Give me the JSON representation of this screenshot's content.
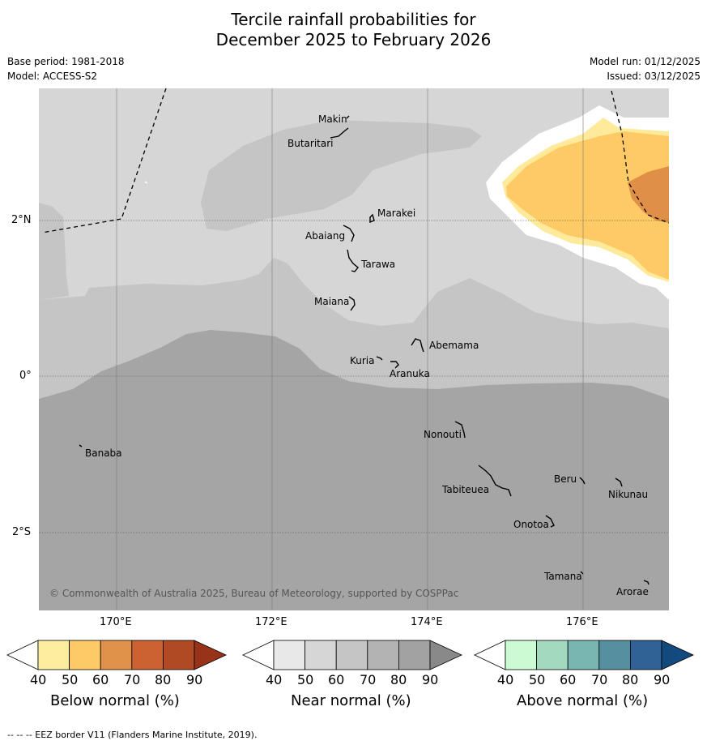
{
  "title": {
    "line1": "Tercile rainfall probabilities for",
    "line2": "December 2025 to February 2026"
  },
  "meta": {
    "base_period": "Base period: 1981-2018",
    "model": "Model: ACCESS-S2",
    "model_run": "Model run: 01/12/2025",
    "issued": "Issued: 03/12/2025"
  },
  "map": {
    "lat_labels": [
      "2°N",
      "0°",
      "2°S"
    ],
    "lon_labels": [
      "170°E",
      "172°E",
      "174°E",
      "176°E"
    ],
    "places": [
      "Makin",
      "Butaritari",
      "Marakei",
      "Abaiang",
      "Tarawa",
      "Maiana",
      "Abemama",
      "Kuria",
      "Aranuka",
      "Nonouti",
      "Banaba",
      "Tabiteuea",
      "Beru",
      "Nikunau",
      "Onotoa",
      "Tamana",
      "Arorae"
    ],
    "copyright": "© Commonwealth of Australia 2025, Bureau of Meteorology, supported by COSPPac",
    "colors": {
      "ocean_light": "#d6d6d6",
      "near_50_60": "#c5c5c5",
      "near_60_70": "#a5a5a5",
      "below_40_50": "#ffea9b",
      "below_50_60": "#fdca65",
      "below_60_70": "#df9046"
    }
  },
  "colorbars": [
    {
      "label": "Below normal (%)",
      "ticks": [
        "40",
        "50",
        "60",
        "70",
        "80",
        "90"
      ],
      "colors": [
        "#ffffff",
        "#ffed9f",
        "#fdca65",
        "#e0924a",
        "#cc6232",
        "#b04a25",
        "#983219"
      ]
    },
    {
      "label": "Near normal (%)",
      "ticks": [
        "40",
        "50",
        "60",
        "70",
        "80",
        "90"
      ],
      "colors": [
        "#ffffff",
        "#e8e8e8",
        "#d6d6d6",
        "#c5c5c5",
        "#b3b3b3",
        "#a2a2a2",
        "#898989"
      ]
    },
    {
      "label": "Above normal (%)",
      "ticks": [
        "40",
        "50",
        "60",
        "70",
        "80",
        "90"
      ],
      "colors": [
        "#ffffff",
        "#cbfad3",
        "#a3dabf",
        "#79b5b1",
        "#5690a0",
        "#306296",
        "#124a7e"
      ]
    }
  ],
  "footer": "--  --  -- EEZ border V11 (Flanders Marine Institute, 2019)."
}
